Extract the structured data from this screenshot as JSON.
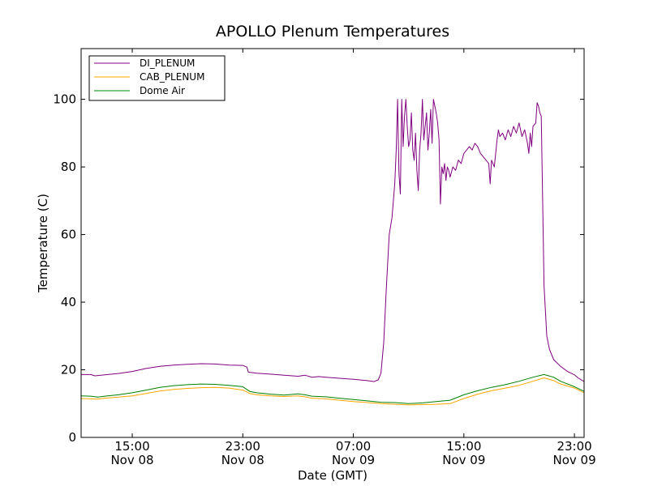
{
  "chart_data": {
    "type": "line",
    "title": "APOLLO Plenum Temperatures",
    "xlabel": "Date (GMT)",
    "ylabel": "Temperature (C)",
    "x_unit": "hours since Nov 08 00:00 GMT",
    "xlim": [
      11.3,
      47.7
    ],
    "ylim": [
      0,
      115
    ],
    "grid": false,
    "legend_position": "top-left",
    "x_ticks": [
      {
        "value": 15,
        "line1": "15:00",
        "line2": "Nov 08"
      },
      {
        "value": 23,
        "line1": "23:00",
        "line2": "Nov 08"
      },
      {
        "value": 31,
        "line1": "07:00",
        "line2": "Nov 09"
      },
      {
        "value": 39,
        "line1": "15:00",
        "line2": "Nov 09"
      },
      {
        "value": 47,
        "line1": "23:00",
        "line2": "Nov 09"
      }
    ],
    "y_ticks": [
      {
        "value": 0,
        "label": "0"
      },
      {
        "value": 20,
        "label": "20"
      },
      {
        "value": 40,
        "label": "40"
      },
      {
        "value": 60,
        "label": "60"
      },
      {
        "value": 80,
        "label": "80"
      },
      {
        "value": 100,
        "label": "100"
      }
    ],
    "series": [
      {
        "name": "DI_PLENUM",
        "color": "#800080",
        "points": [
          [
            11.3,
            18.6
          ],
          [
            12.0,
            18.6
          ],
          [
            12.3,
            18.2
          ],
          [
            13.0,
            18.5
          ],
          [
            14.0,
            18.9
          ],
          [
            15.0,
            19.5
          ],
          [
            16.0,
            20.4
          ],
          [
            17.0,
            21.0
          ],
          [
            18.0,
            21.4
          ],
          [
            19.0,
            21.6
          ],
          [
            20.0,
            21.8
          ],
          [
            21.0,
            21.7
          ],
          [
            22.0,
            21.4
          ],
          [
            23.0,
            21.3
          ],
          [
            23.3,
            20.8
          ],
          [
            23.4,
            19.3
          ],
          [
            24.0,
            19.0
          ],
          [
            25.0,
            18.7
          ],
          [
            26.0,
            18.4
          ],
          [
            27.0,
            18.1
          ],
          [
            27.5,
            18.4
          ],
          [
            28.0,
            17.8
          ],
          [
            28.5,
            18.0
          ],
          [
            29.0,
            17.8
          ],
          [
            30.0,
            17.5
          ],
          [
            31.0,
            17.2
          ],
          [
            32.0,
            16.8
          ],
          [
            32.5,
            16.5
          ],
          [
            32.8,
            17.0
          ],
          [
            33.0,
            19.0
          ],
          [
            33.2,
            28.0
          ],
          [
            33.4,
            45.0
          ],
          [
            33.6,
            60.0
          ],
          [
            33.8,
            65.0
          ],
          [
            34.0,
            75.0
          ],
          [
            34.1,
            85.0
          ],
          [
            34.2,
            100.0
          ],
          [
            34.3,
            78.0
          ],
          [
            34.4,
            72.0
          ],
          [
            34.5,
            100.0
          ],
          [
            34.6,
            86.0
          ],
          [
            34.7,
            95.0
          ],
          [
            34.8,
            100.0
          ],
          [
            34.9,
            92.0
          ],
          [
            35.0,
            86.0
          ],
          [
            35.1,
            88.0
          ],
          [
            35.2,
            96.0
          ],
          [
            35.3,
            85.0
          ],
          [
            35.4,
            82.0
          ],
          [
            35.5,
            90.0
          ],
          [
            35.6,
            79.0
          ],
          [
            35.7,
            73.0
          ],
          [
            35.8,
            85.0
          ],
          [
            35.9,
            90.0
          ],
          [
            36.0,
            100.0
          ],
          [
            36.1,
            88.0
          ],
          [
            36.2,
            92.0
          ],
          [
            36.3,
            96.0
          ],
          [
            36.4,
            85.0
          ],
          [
            36.5,
            90.0
          ],
          [
            36.6,
            97.0
          ],
          [
            36.7,
            87.0
          ],
          [
            36.8,
            100.0
          ],
          [
            36.9,
            98.0
          ],
          [
            37.0,
            96.0
          ],
          [
            37.1,
            93.0
          ],
          [
            37.2,
            88.0
          ],
          [
            37.3,
            69.0
          ],
          [
            37.4,
            80.0
          ],
          [
            37.5,
            78.0
          ],
          [
            37.6,
            81.0
          ],
          [
            37.7,
            76.0
          ],
          [
            37.8,
            80.0
          ],
          [
            37.9,
            79.0
          ],
          [
            38.0,
            77.0
          ],
          [
            38.2,
            80.0
          ],
          [
            38.4,
            79.0
          ],
          [
            38.6,
            82.0
          ],
          [
            38.8,
            81.0
          ],
          [
            39.0,
            84.0
          ],
          [
            39.2,
            85.0
          ],
          [
            39.4,
            86.0
          ],
          [
            39.6,
            85.0
          ],
          [
            39.8,
            87.0
          ],
          [
            40.0,
            86.0
          ],
          [
            40.2,
            84.0
          ],
          [
            40.4,
            83.0
          ],
          [
            40.6,
            82.0
          ],
          [
            40.8,
            81.0
          ],
          [
            40.9,
            75.0
          ],
          [
            41.0,
            82.0
          ],
          [
            41.2,
            80.0
          ],
          [
            41.4,
            88.0
          ],
          [
            41.5,
            91.0
          ],
          [
            41.6,
            89.0
          ],
          [
            41.8,
            90.0
          ],
          [
            42.0,
            88.0
          ],
          [
            42.2,
            91.0
          ],
          [
            42.4,
            89.0
          ],
          [
            42.6,
            92.0
          ],
          [
            42.8,
            90.0
          ],
          [
            43.0,
            93.0
          ],
          [
            43.2,
            89.0
          ],
          [
            43.4,
            91.0
          ],
          [
            43.6,
            87.0
          ],
          [
            43.7,
            84.0
          ],
          [
            43.8,
            90.0
          ],
          [
            43.9,
            86.0
          ],
          [
            44.0,
            92.0
          ],
          [
            44.2,
            93.0
          ],
          [
            44.3,
            99.0
          ],
          [
            44.4,
            98.0
          ],
          [
            44.5,
            96.0
          ],
          [
            44.6,
            95.0
          ],
          [
            44.7,
            70.0
          ],
          [
            44.8,
            45.0
          ],
          [
            45.0,
            30.0
          ],
          [
            45.2,
            26.0
          ],
          [
            45.5,
            23.0
          ],
          [
            46.0,
            21.0
          ],
          [
            46.5,
            19.5
          ],
          [
            47.0,
            18.5
          ],
          [
            47.3,
            17.5
          ],
          [
            47.7,
            16.5
          ]
        ]
      },
      {
        "name": "CAB_PLENUM",
        "color": "#ffa500",
        "points": [
          [
            11.3,
            11.5
          ],
          [
            12.0,
            11.4
          ],
          [
            12.5,
            11.3
          ],
          [
            13.0,
            11.6
          ],
          [
            14.0,
            11.9
          ],
          [
            15.0,
            12.3
          ],
          [
            16.0,
            13.0
          ],
          [
            17.0,
            13.7
          ],
          [
            18.0,
            14.2
          ],
          [
            19.0,
            14.5
          ],
          [
            20.0,
            14.7
          ],
          [
            21.0,
            14.8
          ],
          [
            22.0,
            14.6
          ],
          [
            23.0,
            14.0
          ],
          [
            23.5,
            13.0
          ],
          [
            24.0,
            12.6
          ],
          [
            25.0,
            12.3
          ],
          [
            26.0,
            12.1
          ],
          [
            27.0,
            12.3
          ],
          [
            27.5,
            12.0
          ],
          [
            28.0,
            11.6
          ],
          [
            29.0,
            11.4
          ],
          [
            30.0,
            11.0
          ],
          [
            31.0,
            10.6
          ],
          [
            32.0,
            10.3
          ],
          [
            33.0,
            10.0
          ],
          [
            34.0,
            9.8
          ],
          [
            35.0,
            9.6
          ],
          [
            36.0,
            9.7
          ],
          [
            37.0,
            9.8
          ],
          [
            38.0,
            10.0
          ],
          [
            39.0,
            11.5
          ],
          [
            40.0,
            12.8
          ],
          [
            41.0,
            13.8
          ],
          [
            42.0,
            14.6
          ],
          [
            43.0,
            15.4
          ],
          [
            44.0,
            16.6
          ],
          [
            44.8,
            17.6
          ],
          [
            45.5,
            16.8
          ],
          [
            46.0,
            15.8
          ],
          [
            47.0,
            14.6
          ],
          [
            47.7,
            13.2
          ]
        ]
      },
      {
        "name": "Dome Air",
        "color": "#008000",
        "points": [
          [
            11.3,
            12.3
          ],
          [
            12.0,
            12.2
          ],
          [
            12.5,
            11.9
          ],
          [
            13.0,
            12.2
          ],
          [
            14.0,
            12.6
          ],
          [
            15.0,
            13.2
          ],
          [
            16.0,
            14.0
          ],
          [
            17.0,
            14.8
          ],
          [
            18.0,
            15.3
          ],
          [
            19.0,
            15.6
          ],
          [
            20.0,
            15.8
          ],
          [
            21.0,
            15.7
          ],
          [
            22.0,
            15.4
          ],
          [
            23.0,
            15.0
          ],
          [
            23.5,
            13.6
          ],
          [
            24.0,
            13.2
          ],
          [
            25.0,
            12.8
          ],
          [
            26.0,
            12.5
          ],
          [
            27.0,
            12.9
          ],
          [
            27.5,
            12.6
          ],
          [
            28.0,
            12.2
          ],
          [
            29.0,
            12.0
          ],
          [
            30.0,
            11.6
          ],
          [
            31.0,
            11.2
          ],
          [
            32.0,
            10.8
          ],
          [
            33.0,
            10.4
          ],
          [
            34.0,
            10.3
          ],
          [
            35.0,
            10.0
          ],
          [
            36.0,
            10.2
          ],
          [
            37.0,
            10.6
          ],
          [
            38.0,
            11.0
          ],
          [
            39.0,
            12.6
          ],
          [
            40.0,
            13.8
          ],
          [
            41.0,
            14.8
          ],
          [
            42.0,
            15.6
          ],
          [
            43.0,
            16.6
          ],
          [
            44.0,
            17.8
          ],
          [
            44.8,
            18.6
          ],
          [
            45.5,
            17.8
          ],
          [
            46.0,
            16.6
          ],
          [
            47.0,
            15.0
          ],
          [
            47.7,
            13.6
          ]
        ]
      }
    ]
  }
}
